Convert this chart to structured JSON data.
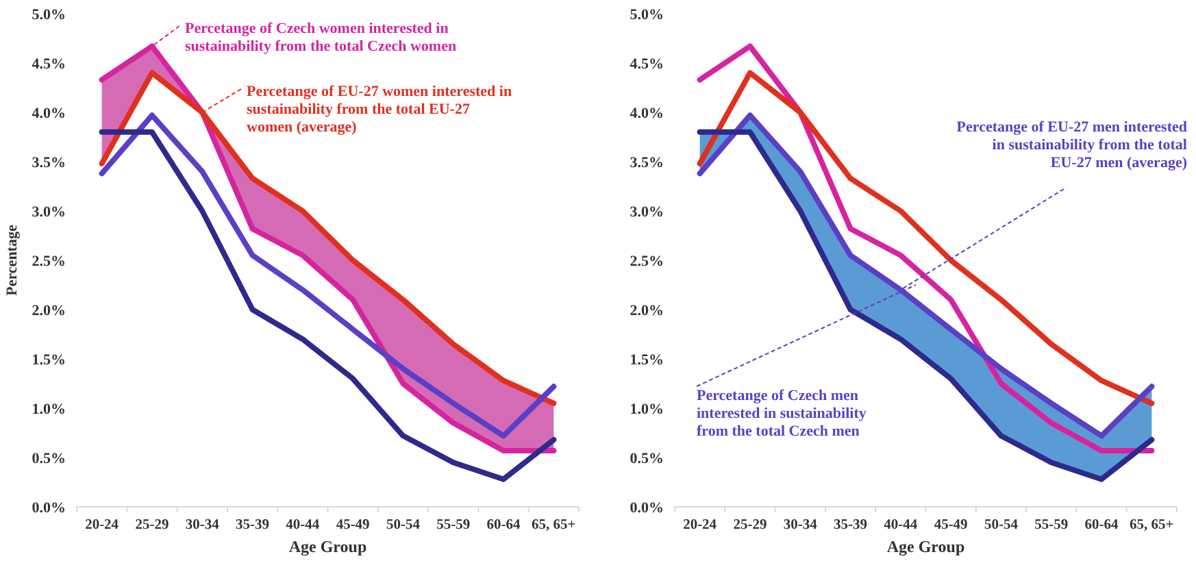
{
  "chart_data": [
    {
      "type": "line",
      "xlabel": "Age Group",
      "ylabel": "Percentage",
      "categories": [
        "20-24",
        "25-29",
        "30-34",
        "35-39",
        "40-44",
        "45-49",
        "50-54",
        "55-59",
        "60-64",
        "65, 65+"
      ],
      "ylim": [
        0,
        5
      ],
      "yticks": [
        {
          "value": 0,
          "label": "0.0%"
        },
        {
          "value": 0.5,
          "label": "0.5%"
        },
        {
          "value": 1,
          "label": "1.0%"
        },
        {
          "value": 1.5,
          "label": "1.5%"
        },
        {
          "value": 2,
          "label": "2.0%"
        },
        {
          "value": 2.5,
          "label": "2.5%"
        },
        {
          "value": 3,
          "label": "3.0%"
        },
        {
          "value": 3.5,
          "label": "3.5%"
        },
        {
          "value": 4,
          "label": "4.0%"
        },
        {
          "value": 4.5,
          "label": "4.5%"
        },
        {
          "value": 5,
          "label": "5.0%"
        }
      ],
      "grid": false,
      "series": [
        {
          "color": "#d6249f",
          "values": [
            4.33,
            4.67,
            4.0,
            2.82,
            2.55,
            2.1,
            1.25,
            0.85,
            0.57,
            0.57
          ],
          "lower": [
            3.48,
            4.4,
            4.0,
            3.33,
            3.0,
            2.5,
            2.1,
            1.65,
            1.28,
            1.05
          ],
          "upper": [
            4.33,
            4.67,
            4.0,
            2.82,
            2.55,
            2.1,
            1.25,
            0.85,
            0.57,
            0.57
          ]
        },
        {
          "color": "#e0301e",
          "values": [
            3.48,
            4.4,
            4.0,
            3.33,
            3.0,
            2.5,
            2.1,
            1.65,
            1.28,
            1.05
          ]
        },
        {
          "color": "#5b3fc4",
          "values": [
            3.38,
            3.97,
            3.4,
            2.55,
            2.2,
            1.8,
            1.4,
            1.05,
            0.72,
            1.22
          ]
        },
        {
          "color": "#2e2a8c",
          "values": [
            3.8,
            3.8,
            3.0,
            2.0,
            1.7,
            1.3,
            0.72,
            0.45,
            0.28,
            0.68
          ]
        }
      ],
      "annotations": [
        {
          "text": "Percetange of Czech women interested in sustainability from the total Czech women",
          "x": "25-29",
          "y": 4.67
        },
        {
          "text": "Percetange of EU-27 women interested in sustainability from the total EU-27 women (average)",
          "x": "30-34",
          "y": 4.0
        }
      ]
    },
    {
      "type": "line",
      "xlabel": "Age Group",
      "categories": [
        "20-24",
        "25-29",
        "30-34",
        "35-39",
        "40-44",
        "45-49",
        "50-54",
        "55-59",
        "60-64",
        "65, 65+"
      ],
      "ylim": [
        0,
        5
      ],
      "yticks": [
        {
          "value": 0,
          "label": "0.0%"
        },
        {
          "value": 0.5,
          "label": "0.5%"
        },
        {
          "value": 1,
          "label": "1.0%"
        },
        {
          "value": 1.5,
          "label": "1.5%"
        },
        {
          "value": 2,
          "label": "2.0%"
        },
        {
          "value": 2.5,
          "label": "2.5%"
        },
        {
          "value": 3,
          "label": "3.0%"
        },
        {
          "value": 3.5,
          "label": "3.5%"
        },
        {
          "value": 4,
          "label": "4.0%"
        },
        {
          "value": 4.5,
          "label": "4.5%"
        },
        {
          "value": 5,
          "label": "5.0%"
        }
      ],
      "grid": false,
      "series": [
        {
          "color": "#d6249f",
          "values": [
            4.33,
            4.67,
            4.0,
            2.82,
            2.55,
            2.1,
            1.25,
            0.85,
            0.57,
            0.57
          ]
        },
        {
          "color": "#e0301e",
          "values": [
            3.48,
            4.4,
            4.0,
            3.33,
            3.0,
            2.5,
            2.1,
            1.65,
            1.28,
            1.05
          ]
        },
        {
          "color": "#5b3fc4",
          "values": [
            3.38,
            3.97,
            3.4,
            2.55,
            2.2,
            1.8,
            1.4,
            1.05,
            0.72,
            1.22
          ]
        },
        {
          "color": "#2e2a8c",
          "values": [
            3.8,
            3.8,
            3.0,
            2.0,
            1.7,
            1.3,
            0.72,
            0.45,
            0.28,
            0.68
          ],
          "lower": [
            3.8,
            3.8,
            3.0,
            2.0,
            1.7,
            1.3,
            0.72,
            0.45,
            0.28,
            0.68
          ],
          "upper": [
            3.38,
            3.97,
            3.4,
            2.55,
            2.2,
            1.8,
            1.4,
            1.05,
            0.72,
            1.22
          ]
        }
      ],
      "annotations": [
        {
          "text": "Percetange of EU-27 men interested in sustainability from the total EU-27 men (average)",
          "x": "40-44",
          "y": 2.2
        },
        "Percetange of Czech men interested in sustainability from the total Czech men"
      ]
    }
  ]
}
